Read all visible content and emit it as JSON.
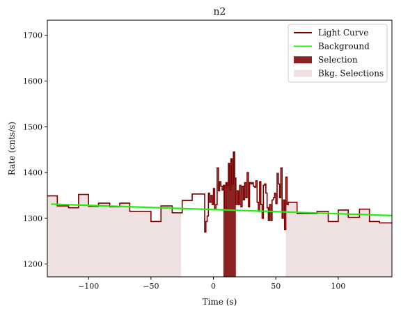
{
  "chart_data": {
    "type": "line",
    "title": "n2",
    "xlabel": "Time (s)",
    "ylabel": "Rate (cnts/s)",
    "xlim": [
      -133,
      143
    ],
    "ylim": [
      1172,
      1733
    ],
    "xticks": [
      -100,
      -50,
      0,
      50,
      100
    ],
    "xtick_labels": [
      "−100",
      "−50",
      "0",
      "50",
      "100"
    ],
    "yticks": [
      1200,
      1300,
      1400,
      1500,
      1600,
      1700
    ],
    "ytick_labels": [
      "1200",
      "1300",
      "1400",
      "1500",
      "1600",
      "1700"
    ],
    "grid": false,
    "legend": {
      "placement": "top-right",
      "entries": [
        {
          "label": "Light Curve",
          "kind": "line",
          "color": "#7b0000"
        },
        {
          "label": "Background",
          "kind": "line",
          "color": "#22ee11"
        },
        {
          "label": "Selection",
          "kind": "patch",
          "color": "#8b2323"
        },
        {
          "label": "Bkg. Selections",
          "kind": "patch",
          "color": "#efe1e1"
        }
      ]
    },
    "series": [
      {
        "name": "Light Curve",
        "color": "#7b0000",
        "step": "post",
        "x": [
          -133,
          -125,
          -116,
          -108,
          -100,
          -92,
          -83,
          -75,
          -67,
          -58,
          -50,
          -42,
          -33,
          -25,
          -17,
          -8,
          -7,
          -6,
          -5,
          -4,
          -3,
          -2,
          -1,
          0,
          1,
          2,
          3,
          4,
          5,
          6,
          7,
          8,
          9,
          10,
          11,
          12,
          13,
          14,
          15,
          16,
          17,
          18,
          19,
          20,
          21,
          22,
          23,
          24,
          25,
          26,
          27,
          28,
          29,
          30,
          31,
          32,
          33,
          34,
          35,
          36,
          37,
          38,
          39,
          40,
          41,
          42,
          43,
          44,
          45,
          46,
          47,
          48,
          49,
          50,
          51,
          52,
          53,
          54,
          55,
          56,
          57,
          58,
          59,
          60,
          67,
          75,
          83,
          92,
          100,
          108,
          117,
          125,
          133,
          142
        ],
        "y": [
          1349,
          1327,
          1323,
          1352,
          1326,
          1333,
          1325,
          1333,
          1315,
          1315,
          1293,
          1327,
          1312,
          1339,
          1353,
          1353,
          1270,
          1293,
          1305,
          1355,
          1335,
          1350,
          1330,
          1365,
          1320,
          1330,
          1410,
          1360,
          1380,
          1370,
          1362,
          1372,
          1318,
          1378,
          1372,
          1420,
          1362,
          1430,
          1375,
          1445,
          1388,
          1330,
          1360,
          1330,
          1372,
          1325,
          1370,
          1340,
          1378,
          1345,
          1400,
          1325,
          1378,
          1375,
          1378,
          1370,
          1368,
          1382,
          1335,
          1315,
          1380,
          1330,
          1300,
          1372,
          1375,
          1355,
          1323,
          1295,
          1330,
          1295,
          1340,
          1345,
          1355,
          1332,
          1398,
          1375,
          1345,
          1410,
          1300,
          1340,
          1275,
          1390,
          1330,
          1335,
          1310,
          1310,
          1315,
          1293,
          1318,
          1302,
          1320,
          1293,
          1290,
          1290
        ]
      },
      {
        "name": "Background",
        "color": "#22ee11",
        "x": [
          -130,
          143
        ],
        "y": [
          1331,
          1306
        ]
      }
    ],
    "selection": {
      "label": "Selection",
      "color": "#8b2323",
      "xrange": [
        8,
        18
      ]
    },
    "bkg_selections": {
      "label": "Bkg. Selections",
      "color": "#efe1e1",
      "ranges": [
        [
          -133,
          -26
        ],
        [
          58,
          143
        ]
      ]
    }
  }
}
